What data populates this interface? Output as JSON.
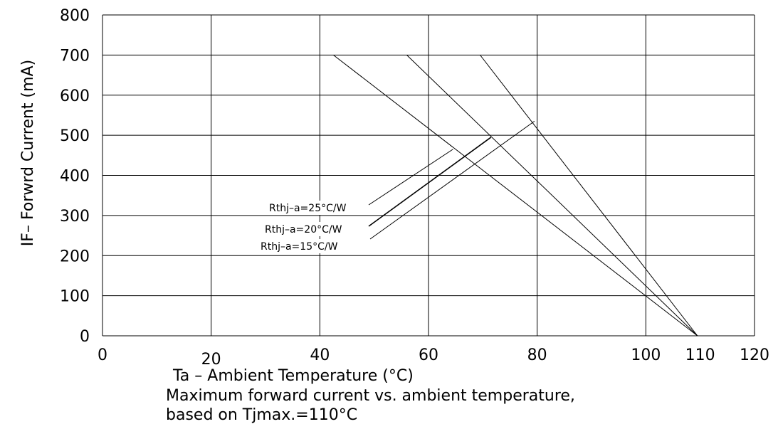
{
  "chart_data": {
    "type": "line",
    "title": "",
    "xlabel": "Ta – Ambient Temperature (°C)",
    "ylabel": "IF– Forwrd Current (mA)",
    "caption": [
      "Maximum forward current vs. ambient temperature,",
      "based on Tjmax.=110°C"
    ],
    "xlim": [
      0,
      120
    ],
    "ylim": [
      0,
      800
    ],
    "grid": true,
    "x_ticks": [
      {
        "value": 0,
        "label": "0"
      },
      {
        "value": 20,
        "label": "20"
      },
      {
        "value": 40,
        "label": "40"
      },
      {
        "value": 60,
        "label": "60"
      },
      {
        "value": 80,
        "label": "80"
      },
      {
        "value": 100,
        "label": "100"
      },
      {
        "value": 110,
        "label": "110"
      },
      {
        "value": 120,
        "label": "120"
      }
    ],
    "y_ticks": [
      {
        "value": 0,
        "label": "0"
      },
      {
        "value": 100,
        "label": "100"
      },
      {
        "value": 200,
        "label": "200"
      },
      {
        "value": 300,
        "label": "300"
      },
      {
        "value": 400,
        "label": "400"
      },
      {
        "value": 500,
        "label": "500"
      },
      {
        "value": 600,
        "label": "600"
      },
      {
        "value": 700,
        "label": "700"
      },
      {
        "value": 800,
        "label": "800"
      }
    ],
    "series": [
      {
        "name": "Rthj–a=25°C/W",
        "x": [
          42.5,
          109.5
        ],
        "y": [
          700,
          0
        ],
        "label_anchor": [
          64.5,
          465
        ]
      },
      {
        "name": "Rthj–a=20°C/W",
        "x": [
          56,
          109.5
        ],
        "y": [
          700,
          0
        ],
        "label_anchor": [
          71.5,
          495
        ]
      },
      {
        "name": "Rthj–a=15°C/W",
        "x": [
          69.5,
          109.5
        ],
        "y": [
          700,
          0
        ],
        "label_anchor": [
          79.5,
          535
        ]
      }
    ]
  }
}
